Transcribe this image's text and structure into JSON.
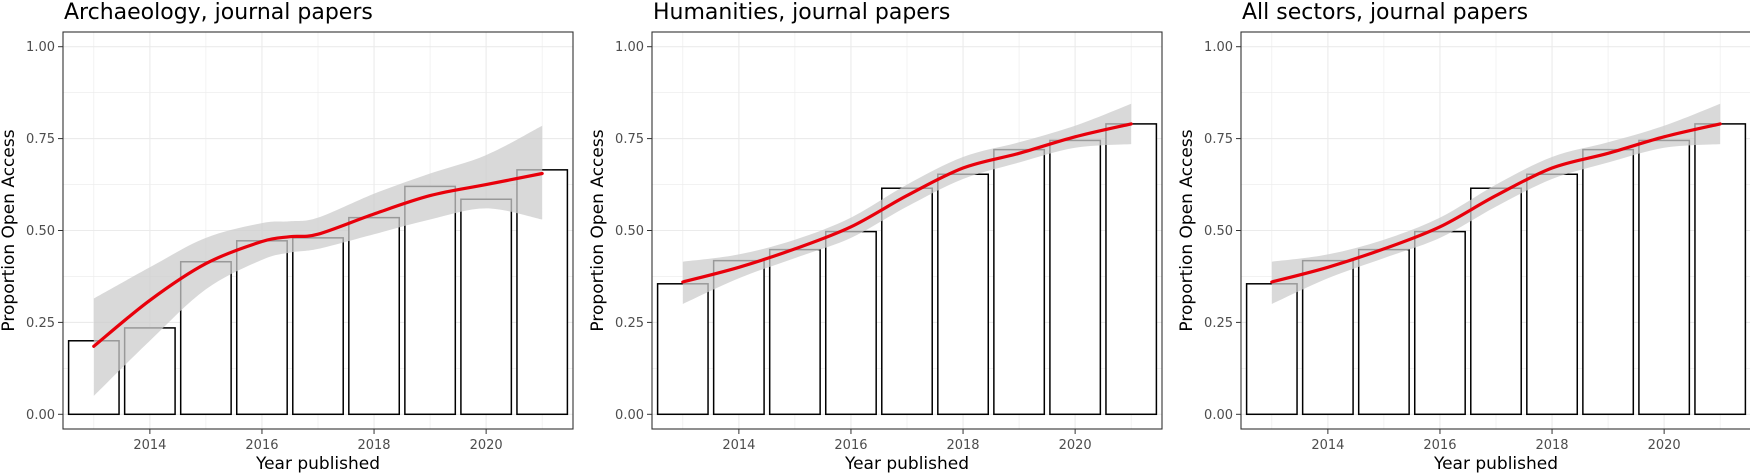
{
  "chart_data": [
    {
      "type": "bar",
      "title": "Archaeology, journal papers",
      "xlabel": "Year published",
      "ylabel": "Proportion Open Access",
      "x": [
        2013,
        2014,
        2015,
        2016,
        2017,
        2018,
        2019,
        2020,
        2021
      ],
      "values": [
        0.2,
        0.235,
        0.415,
        0.472,
        0.48,
        0.535,
        0.62,
        0.585,
        0.665
      ],
      "smooth": {
        "x": [
          2013,
          2014,
          2015,
          2016,
          2016.5,
          2017,
          2018,
          2019,
          2020,
          2021
        ],
        "y": [
          0.185,
          0.31,
          0.41,
          0.47,
          0.483,
          0.49,
          0.545,
          0.595,
          0.625,
          0.655
        ],
        "lower": [
          0.05,
          0.2,
          0.34,
          0.42,
          0.44,
          0.45,
          0.49,
          0.53,
          0.56,
          0.53
        ],
        "upper": [
          0.315,
          0.4,
          0.48,
          0.52,
          0.525,
          0.535,
          0.6,
          0.655,
          0.705,
          0.785
        ]
      },
      "xticks": [
        2014,
        2016,
        2018,
        2020
      ],
      "yticks": [
        "0.00",
        "0.25",
        "0.50",
        "0.75",
        "1.00"
      ],
      "xlim": [
        2012.45,
        2021.55
      ],
      "ylim": [
        -0.04,
        1.04
      ],
      "colors": {
        "bar_fill": "#ffffff",
        "bar_edge": "#000000",
        "line": "#e8000b",
        "band": "#cccccc"
      },
      "grid": true
    },
    {
      "type": "bar",
      "title": "Humanities, journal papers",
      "xlabel": "Year published",
      "ylabel": "Proportion Open Access",
      "x": [
        2013,
        2014,
        2015,
        2016,
        2017,
        2018,
        2019,
        2020,
        2021
      ],
      "values": [
        0.355,
        0.418,
        0.448,
        0.497,
        0.615,
        0.653,
        0.72,
        0.745,
        0.79
      ],
      "smooth": {
        "x": [
          2013,
          2014,
          2015,
          2016,
          2017,
          2018,
          2019,
          2020,
          2021
        ],
        "y": [
          0.36,
          0.4,
          0.45,
          0.51,
          0.595,
          0.67,
          0.71,
          0.755,
          0.79
        ],
        "lower": [
          0.3,
          0.37,
          0.425,
          0.48,
          0.565,
          0.64,
          0.685,
          0.725,
          0.735
        ],
        "upper": [
          0.415,
          0.435,
          0.475,
          0.535,
          0.625,
          0.7,
          0.74,
          0.785,
          0.845
        ]
      },
      "xticks": [
        2014,
        2016,
        2018,
        2020
      ],
      "yticks": [
        "0.00",
        "0.25",
        "0.50",
        "0.75",
        "1.00"
      ],
      "xlim": [
        2012.45,
        2021.55
      ],
      "ylim": [
        -0.04,
        1.04
      ],
      "colors": {
        "bar_fill": "#ffffff",
        "bar_edge": "#000000",
        "line": "#e8000b",
        "band": "#cccccc"
      },
      "grid": true
    },
    {
      "type": "bar",
      "title": "All sectors, journal papers",
      "xlabel": "Year published",
      "ylabel": "Proportion Open Access",
      "x": [
        2013,
        2014,
        2015,
        2016,
        2017,
        2018,
        2019,
        2020,
        2021
      ],
      "values": [
        0.355,
        0.418,
        0.448,
        0.497,
        0.615,
        0.653,
        0.72,
        0.745,
        0.79
      ],
      "smooth": {
        "x": [
          2013,
          2014,
          2015,
          2016,
          2017,
          2018,
          2019,
          2020,
          2021
        ],
        "y": [
          0.36,
          0.4,
          0.45,
          0.51,
          0.595,
          0.67,
          0.71,
          0.755,
          0.79
        ],
        "lower": [
          0.3,
          0.37,
          0.425,
          0.48,
          0.565,
          0.64,
          0.685,
          0.725,
          0.735
        ],
        "upper": [
          0.415,
          0.435,
          0.475,
          0.535,
          0.625,
          0.7,
          0.74,
          0.785,
          0.845
        ]
      },
      "xticks": [
        2014,
        2016,
        2018,
        2020
      ],
      "yticks": [
        "0.00",
        "0.25",
        "0.50",
        "0.75",
        "1.00"
      ],
      "xlim": [
        2012.45,
        2021.55
      ],
      "ylim": [
        -0.04,
        1.04
      ],
      "colors": {
        "bar_fill": "#ffffff",
        "bar_edge": "#000000",
        "line": "#e8000b",
        "band": "#cccccc"
      },
      "grid": true
    }
  ]
}
